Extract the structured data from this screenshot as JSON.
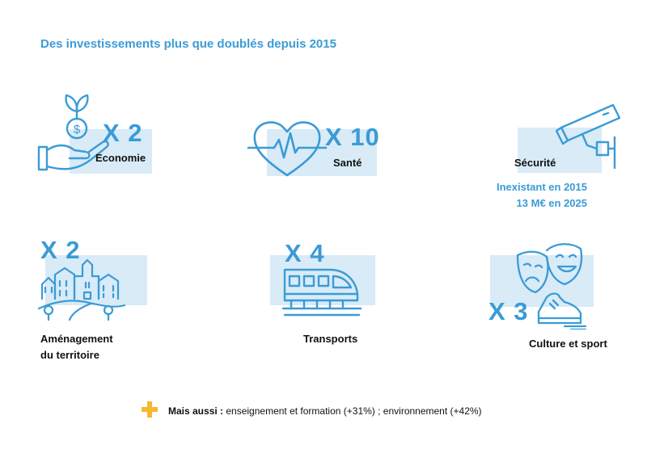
{
  "title": "Des investissements plus que doublés depuis 2015",
  "colors": {
    "accent": "#3b9bd6",
    "panel": "#d8ebf7",
    "plus": "#f5b82e"
  },
  "items": [
    {
      "id": "economie",
      "multiplier": "X 2",
      "label": "Economie",
      "icon": "money-plant-hand-icon"
    },
    {
      "id": "sante",
      "multiplier": "X 10",
      "label": "Santé",
      "icon": "heartbeat-icon"
    },
    {
      "id": "securite",
      "multiplier": "",
      "label": "Sécurité",
      "icon": "security-camera-icon",
      "note_line1": "Inexistant en 2015",
      "note_line2": "13 M€ en 2025"
    },
    {
      "id": "amenagement",
      "multiplier": "X 2",
      "label_line1": "Aménagement",
      "label_line2": "du territoire",
      "icon": "town-icon"
    },
    {
      "id": "transports",
      "multiplier": "X 4",
      "label": "Transports",
      "icon": "train-icon"
    },
    {
      "id": "culture",
      "multiplier": "X 3",
      "label": "Culture et sport",
      "icon": "theatre-masks-sneaker-icon"
    }
  ],
  "footer": {
    "bold": "Mais aussi :",
    "text": " enseignement et formation (+31%) ; environnement (+42%)",
    "icon": "plus-icon"
  }
}
